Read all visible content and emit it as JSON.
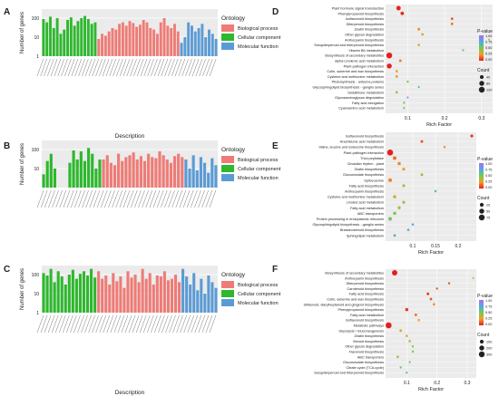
{
  "chart_data": [
    {
      "panel": "A",
      "type": "bar",
      "ylabel": "Number of genes",
      "xlabel": "Description",
      "legend_title": "Ontology",
      "legend": [
        "Biological process",
        "Cellular component",
        "Molecular function"
      ],
      "colors": [
        "#ef7b76",
        "#2db82d",
        "#5b9bd5"
      ],
      "scale": "log",
      "ticks": [
        1,
        10,
        100
      ],
      "groups": [
        {
          "name": "Cellular component",
          "values": [
            90,
            60,
            120,
            30,
            100,
            15,
            25,
            80,
            110,
            40,
            70,
            100,
            130,
            90,
            50,
            60
          ]
        },
        {
          "name": "Biological process",
          "values": [
            8,
            15,
            12,
            20,
            30,
            25,
            50,
            60,
            40,
            70,
            55,
            35,
            45,
            80,
            60,
            30,
            25,
            15,
            60,
            100,
            40,
            30,
            50,
            20
          ]
        },
        {
          "name": "Molecular function",
          "values": [
            5,
            10,
            60,
            40,
            20,
            30,
            50,
            10,
            25,
            15,
            8
          ]
        }
      ]
    },
    {
      "panel": "B",
      "type": "bar",
      "ylabel": "Number of genes",
      "xlabel": "Description",
      "legend_title": "Ontology",
      "legend": [
        "Biological process",
        "Cellular component",
        "Molecular function"
      ],
      "colors": [
        "#ef7b76",
        "#2db82d",
        "#5b9bd5"
      ],
      "scale": "log",
      "ticks": [
        10,
        100
      ],
      "groups": [
        {
          "name": "Cellular component",
          "values": [
            5,
            25,
            60,
            10,
            1,
            1,
            1,
            20,
            90,
            30,
            80,
            25,
            120,
            60,
            10,
            30
          ]
        },
        {
          "name": "Biological process",
          "values": [
            30,
            50,
            20,
            15,
            60,
            25,
            40,
            50,
            70,
            30,
            45,
            25,
            60,
            40,
            35,
            80,
            50,
            30,
            20,
            45,
            60,
            40
          ]
        },
        {
          "name": "Molecular function",
          "values": [
            30,
            10,
            50,
            8,
            40,
            20,
            6,
            35,
            15
          ]
        }
      ]
    },
    {
      "panel": "C",
      "type": "bar",
      "ylabel": "Number of genes",
      "xlabel": "Description",
      "legend_title": "Ontology",
      "legend": [
        "Biological process",
        "Cellular component",
        "Molecular function"
      ],
      "colors": [
        "#ef7b76",
        "#2db82d",
        "#5b9bd5"
      ],
      "scale": "log",
      "ticks": [
        1,
        10,
        100
      ],
      "groups": [
        {
          "name": "Cellular component",
          "values": [
            120,
            90,
            200,
            40,
            150,
            80,
            30,
            100,
            180,
            60,
            110,
            150,
            90,
            200,
            70
          ]
        },
        {
          "name": "Biological process",
          "values": [
            150,
            60,
            90,
            30,
            120,
            45,
            80,
            20,
            150,
            70,
            100,
            40,
            200,
            60,
            120,
            30,
            90,
            80,
            150,
            50,
            60,
            100,
            40
          ]
        },
        {
          "name": "Molecular function",
          "values": [
            200,
            80,
            30,
            120,
            15,
            60,
            10,
            90,
            40,
            20
          ]
        }
      ]
    },
    {
      "panel": "D",
      "type": "scatter",
      "xlabel": "Rich Factor",
      "xticks": [
        0.1,
        0.2,
        0.3
      ],
      "xlim": [
        0.04,
        0.33
      ],
      "color_legend_title": "P-value",
      "color_ticks": [
        "1.00",
        "0.75",
        "0.50",
        "0.25",
        "0.00"
      ],
      "size_legend_title": "Count",
      "size_ticks": [
        "40",
        "80",
        "120"
      ],
      "size_values": [
        40,
        80,
        120
      ],
      "categories": [
        "Plant hormone signal transduction",
        "Phenylpropanoid biosynthesis",
        "Isoflavonoid biosynthesis",
        "Diterpenoid biosynthesis",
        "Zeatin biosynthesis",
        "Other glycan degradation",
        "Anthocyanin biosynthesis",
        "Sesquiterpenoid and triterpenoid biosynthesis",
        "Vitamin B6 metabolism",
        "Biosynthesis of secondary metabolites",
        "alpha-Linolenic acid metabolism",
        "Plant-pathogen interaction",
        "Cutin, suberine and wax biosynthesis",
        "Cysteine and methionine metabolism",
        "Photosynthesis - antenna proteins",
        "Glycosphingolipid biosynthesis - ganglio series",
        "Glutathione metabolism",
        "Glycosaminoglycan degradation",
        "Fatty acid elongation",
        "Cyanoamino acid metabolism"
      ],
      "x": [
        0.075,
        0.085,
        0.22,
        0.22,
        0.13,
        0.14,
        0.32,
        0.13,
        0.25,
        0.05,
        0.08,
        0.05,
        0.07,
        0.07,
        0.1,
        0.13,
        0.07,
        0.1,
        0.09,
        0.09
      ],
      "count": [
        60,
        30,
        10,
        10,
        12,
        10,
        4,
        8,
        5,
        120,
        15,
        80,
        10,
        12,
        6,
        4,
        10,
        4,
        6,
        4
      ],
      "pvalue": [
        0.01,
        0.02,
        0.1,
        0.15,
        0.2,
        0.3,
        0.45,
        0.35,
        0.55,
        0.0,
        0.2,
        0.0,
        0.25,
        0.3,
        0.5,
        0.7,
        0.4,
        0.8,
        0.45,
        0.6
      ]
    },
    {
      "panel": "E",
      "type": "scatter",
      "xlabel": "Rich Factor",
      "xticks": [
        0.1,
        0.15,
        0.2
      ],
      "xlim": [
        0.04,
        0.24
      ],
      "color_legend_title": "P-value",
      "color_ticks": [
        "1.00",
        "0.75",
        "0.50",
        "0.25",
        "0.00"
      ],
      "size_legend_title": "Count",
      "size_ticks": [
        "25",
        "50",
        "75"
      ],
      "size_values": [
        25,
        50,
        75
      ],
      "categories": [
        "Isoflavonoid biosynthesis",
        "Arachidonic acid metabolism",
        "Valine, leucine and isoleucine biosynthesis",
        "Plant-pathogen interaction",
        "Thiol peptidase",
        "Circadian rhythm - plant",
        "Zeatin biosynthesis",
        "Glucosinolate biosynthesis",
        "Spliceosome",
        "Fatty acid biosynthesis",
        "Anthocyanin biosynthesis",
        "Cysteine and methionine metabolism",
        "Linoleic acid metabolism",
        "Fatty acid metabolism",
        "ABC transporters",
        "Protein processing in endoplasmic reticulum",
        "Glycosphingolipid biosynthesis - ganglio series",
        "Brassinosteroid biosynthesis",
        "Sphingolipid metabolism"
      ],
      "x": [
        0.23,
        0.12,
        0.17,
        0.05,
        0.06,
        0.07,
        0.08,
        0.12,
        0.05,
        0.08,
        0.15,
        0.06,
        0.08,
        0.07,
        0.06,
        0.05,
        0.1,
        0.09,
        0.06
      ],
      "count": [
        10,
        8,
        6,
        80,
        20,
        15,
        12,
        8,
        25,
        10,
        5,
        15,
        10,
        12,
        15,
        20,
        5,
        6,
        8
      ],
      "pvalue": [
        0.02,
        0.1,
        0.3,
        0.0,
        0.15,
        0.2,
        0.25,
        0.4,
        0.2,
        0.35,
        0.6,
        0.3,
        0.45,
        0.4,
        0.5,
        0.55,
        0.75,
        0.65,
        0.7
      ]
    },
    {
      "panel": "F",
      "type": "scatter",
      "xlabel": "Rich Factor",
      "xticks": [
        0.1,
        0.2,
        0.3
      ],
      "xlim": [
        0.03,
        0.33
      ],
      "color_legend_title": "P-value",
      "color_ticks": [
        "1.00",
        "0.75",
        "0.50",
        "0.25",
        "0.00"
      ],
      "size_legend_title": "Count",
      "size_ticks": [
        "100",
        "200",
        "300"
      ],
      "size_values": [
        100,
        200,
        300
      ],
      "categories": [
        "Biosynthesis of secondary metabolites",
        "Anthocyanin biosynthesis",
        "Diterpenoid biosynthesis",
        "Carotenoid biosynthesis",
        "Fatty acid biosynthesis",
        "Cutin, suberine and wax biosynthesis",
        "Stilbenoid, diarylheptanoid and gingerol biosynthesis",
        "Phenylpropanoid biosynthesis",
        "Fatty acid metabolism",
        "Isoflavonoid biosynthesis",
        "Metabolic pathways",
        "Glycolysis / Gluconeogenesis",
        "Zeatin biosynthesis",
        "Steroid biosynthesis",
        "Other glycan degradation",
        "Flavonoid biosynthesis",
        "ABC transporters",
        "Glucosinolate biosynthesis",
        "Citrate cycle (TCA cycle)",
        "Sesquiterpenoid and triterpenoid biosynthesis"
      ],
      "x": [
        0.06,
        0.32,
        0.24,
        0.2,
        0.17,
        0.18,
        0.19,
        0.1,
        0.13,
        0.14,
        0.04,
        0.08,
        0.1,
        0.11,
        0.12,
        0.12,
        0.07,
        0.11,
        0.08,
        0.1
      ],
      "count": [
        250,
        10,
        15,
        20,
        30,
        25,
        20,
        60,
        30,
        20,
        320,
        30,
        20,
        20,
        15,
        18,
        25,
        10,
        15,
        12
      ],
      "pvalue": [
        0.0,
        0.3,
        0.1,
        0.15,
        0.05,
        0.1,
        0.2,
        0.05,
        0.15,
        0.25,
        0.0,
        0.3,
        0.35,
        0.4,
        0.45,
        0.5,
        0.35,
        0.6,
        0.55,
        0.65
      ]
    }
  ]
}
